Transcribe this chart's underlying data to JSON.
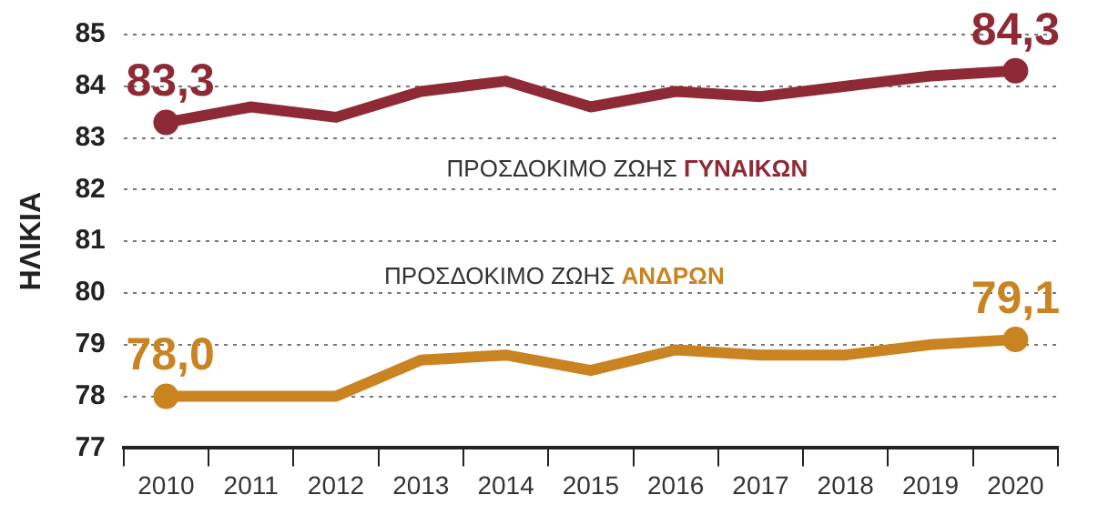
{
  "chart_data": {
    "type": "line",
    "ylabel": "ΗΛΙΚΙΑ",
    "categories": [
      "2010",
      "2011",
      "2012",
      "2013",
      "2014",
      "2015",
      "2016",
      "2017",
      "2018",
      "2019",
      "2020"
    ],
    "ylim": [
      77,
      85
    ],
    "yticks": [
      77,
      78,
      79,
      80,
      81,
      82,
      83,
      84,
      85
    ],
    "grid": "y",
    "line_style": "solid",
    "series": [
      {
        "name": "ΠΡΟΣΔΟΚΙΜΟ ΖΩΗΣ ΓΥΝΑΙΚΩΝ",
        "color": "#8e2a36",
        "values": [
          83.3,
          83.6,
          83.4,
          83.9,
          84.1,
          83.6,
          83.9,
          83.8,
          84.0,
          84.2,
          84.3
        ],
        "value_labels": [
          "83,3",
          null,
          null,
          null,
          null,
          null,
          null,
          null,
          null,
          null,
          "84,3"
        ]
      },
      {
        "name": "ΠΡΟΣΔΟΚΙΜΟ ΖΩΗΣ ΑΝΔΡΩΝ",
        "color": "#c98320",
        "values": [
          78.0,
          78.0,
          78.0,
          78.7,
          78.8,
          78.5,
          78.9,
          78.8,
          78.8,
          79.0,
          79.1
        ],
        "value_labels": [
          "78,0",
          null,
          null,
          null,
          null,
          null,
          null,
          null,
          null,
          null,
          "79,1"
        ]
      }
    ]
  }
}
